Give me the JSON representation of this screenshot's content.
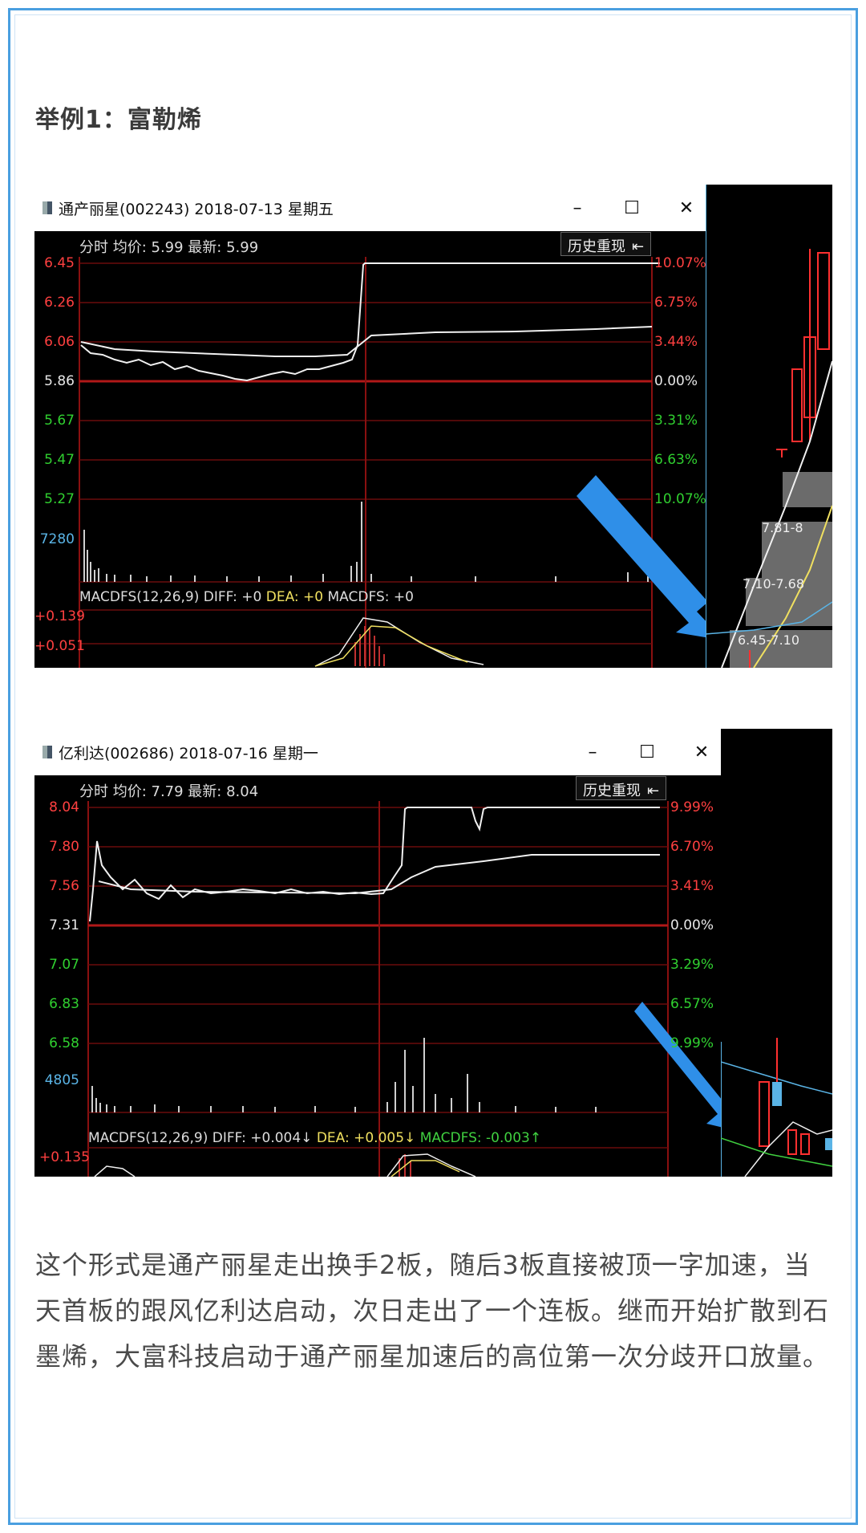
{
  "heading": "举例1：富勒烯",
  "chart1": {
    "title": "通产丽星(002243) 2018-07-13 星期五",
    "info": "分时 均价: 5.99 最新: 5.99",
    "history_label": "历史重现",
    "left_axis": [
      "6.45",
      "6.26",
      "6.06",
      "5.86",
      "5.67",
      "5.47",
      "5.27"
    ],
    "right_axis": [
      "10.07%",
      "6.75%",
      "3.44%",
      "0.00%",
      "3.31%",
      "6.63%",
      "10.07%"
    ],
    "volume_label": "7280",
    "macd_prefix": "MACDFS(12,26,9) DIFF: +0",
    "macd_dea": "DEA: +0",
    "macd_fs": "MACDFS: +0",
    "macd_axis": [
      "+0.139",
      "+0.051"
    ],
    "side_labels": [
      "7.81-8",
      "7.10-7.68",
      "6.45-7.10"
    ]
  },
  "chart2": {
    "title": "亿利达(002686) 2018-07-16 星期一",
    "info": "分时 均价: 7.79 最新: 8.04",
    "history_label": "历史重现",
    "left_axis": [
      "8.04",
      "7.80",
      "7.56",
      "7.31",
      "7.07",
      "6.83",
      "6.58"
    ],
    "right_axis": [
      "9.99%",
      "6.70%",
      "3.41%",
      "0.00%",
      "3.29%",
      "6.57%",
      "9.99%"
    ],
    "volume_label": "4805",
    "macd_prefix": "MACDFS(12,26,9) DIFF: +0.004↓",
    "macd_dea": "DEA: +0.005↓",
    "macd_fs": "MACDFS: -0.003↑",
    "macd_axis": [
      "+0.135"
    ]
  },
  "window_buttons": [
    "–",
    "☐",
    "✕"
  ],
  "body_text": "这个形式是通产丽星走出换手2板，随后3板直接被顶一字加速，当天首板的跟风亿利达启动，次日走出了一个连板。继而开始扩散到石墨烯，大富科技启动于通产丽星加速后的高位第一次分歧开口放量。",
  "colors": {
    "frame": "#4a9fe0",
    "arrow": "#2f8fe8",
    "grid_red": "#8a1010",
    "up_red": "#ff4040",
    "down_green": "#30d030"
  }
}
